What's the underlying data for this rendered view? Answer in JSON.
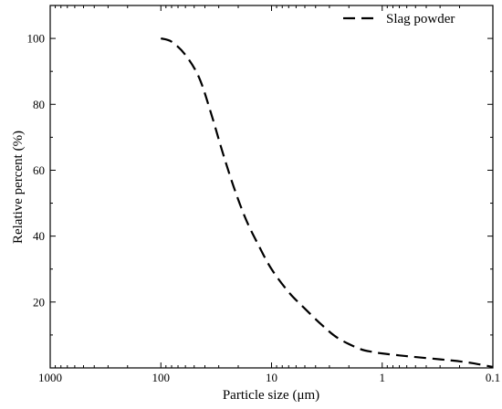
{
  "chart_data": {
    "type": "line",
    "x_scale": "log",
    "x_reversed": true,
    "xlim": [
      1000,
      0.1
    ],
    "ylim": [
      0,
      110
    ],
    "x_ticks": [
      "1000",
      "100",
      "10",
      "1",
      "0.1"
    ],
    "y_ticks": [
      "20",
      "40",
      "60",
      "80",
      "100"
    ],
    "xlabel": "Particle size (μm)",
    "ylabel": "Relative percent (%)",
    "grid": false,
    "legend": {
      "position": "top-right"
    },
    "series": [
      {
        "name": "Slag powder",
        "color": "#000000",
        "line_style": "dashed",
        "x": [
          100,
          80,
          60,
          45,
          35,
          28,
          22,
          17,
          13,
          10,
          7,
          5,
          3.5,
          2.5,
          1.6,
          1.2,
          1,
          0.7,
          0.5,
          0.3,
          0.2,
          0.15,
          0.1
        ],
        "y": [
          100,
          99,
          95,
          88,
          77,
          66,
          55,
          45,
          37,
          30,
          23,
          18,
          13,
          9,
          5.8,
          4.8,
          4.4,
          3.8,
          3.3,
          2.6,
          2.0,
          1.4,
          0.3
        ]
      }
    ]
  }
}
